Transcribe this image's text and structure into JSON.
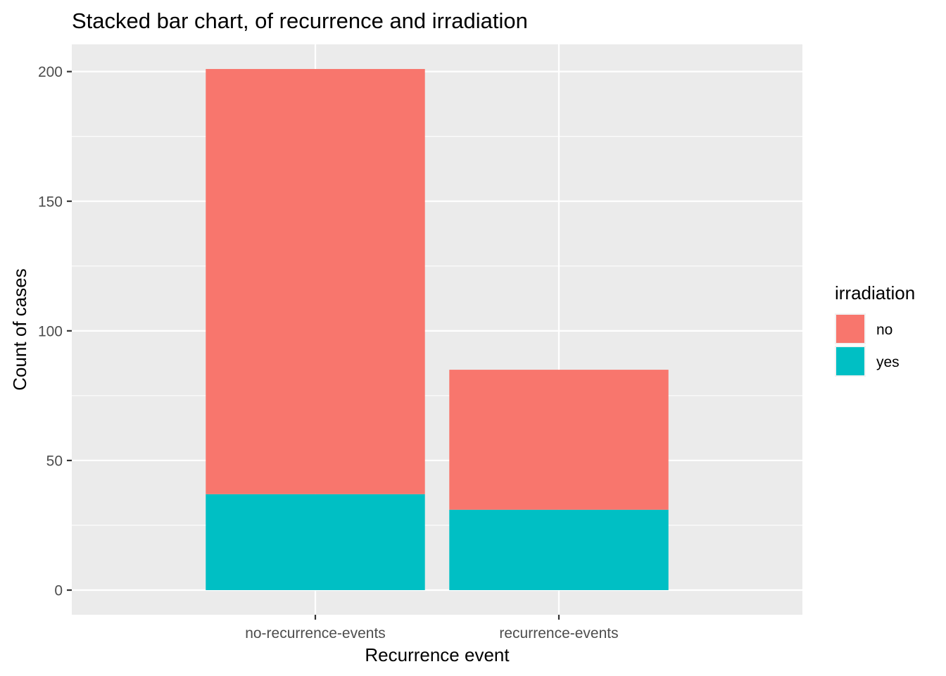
{
  "chart_data": {
    "type": "bar",
    "stacked": true,
    "title": "Stacked bar chart, of recurrence and irradiation",
    "xlabel": "Recurrence event",
    "ylabel": "Count of cases",
    "categories": [
      "no-recurrence-events",
      "recurrence-events"
    ],
    "series": [
      {
        "name": "yes",
        "values": [
          37,
          31
        ],
        "color": "#00BFC4"
      },
      {
        "name": "no",
        "values": [
          164,
          54
        ],
        "color": "#F8766D"
      }
    ],
    "ylim": [
      -9.5,
      210.5
    ],
    "yticks": [
      0,
      50,
      100,
      150,
      200
    ],
    "grid": true,
    "legend": {
      "title": "irradiation",
      "placement": "right",
      "entries": [
        {
          "label": "no",
          "color": "#F8766D"
        },
        {
          "label": "yes",
          "color": "#00BFC4"
        }
      ]
    },
    "panel_background": "#EBEBEB",
    "grid_color": "#FFFFFF"
  }
}
